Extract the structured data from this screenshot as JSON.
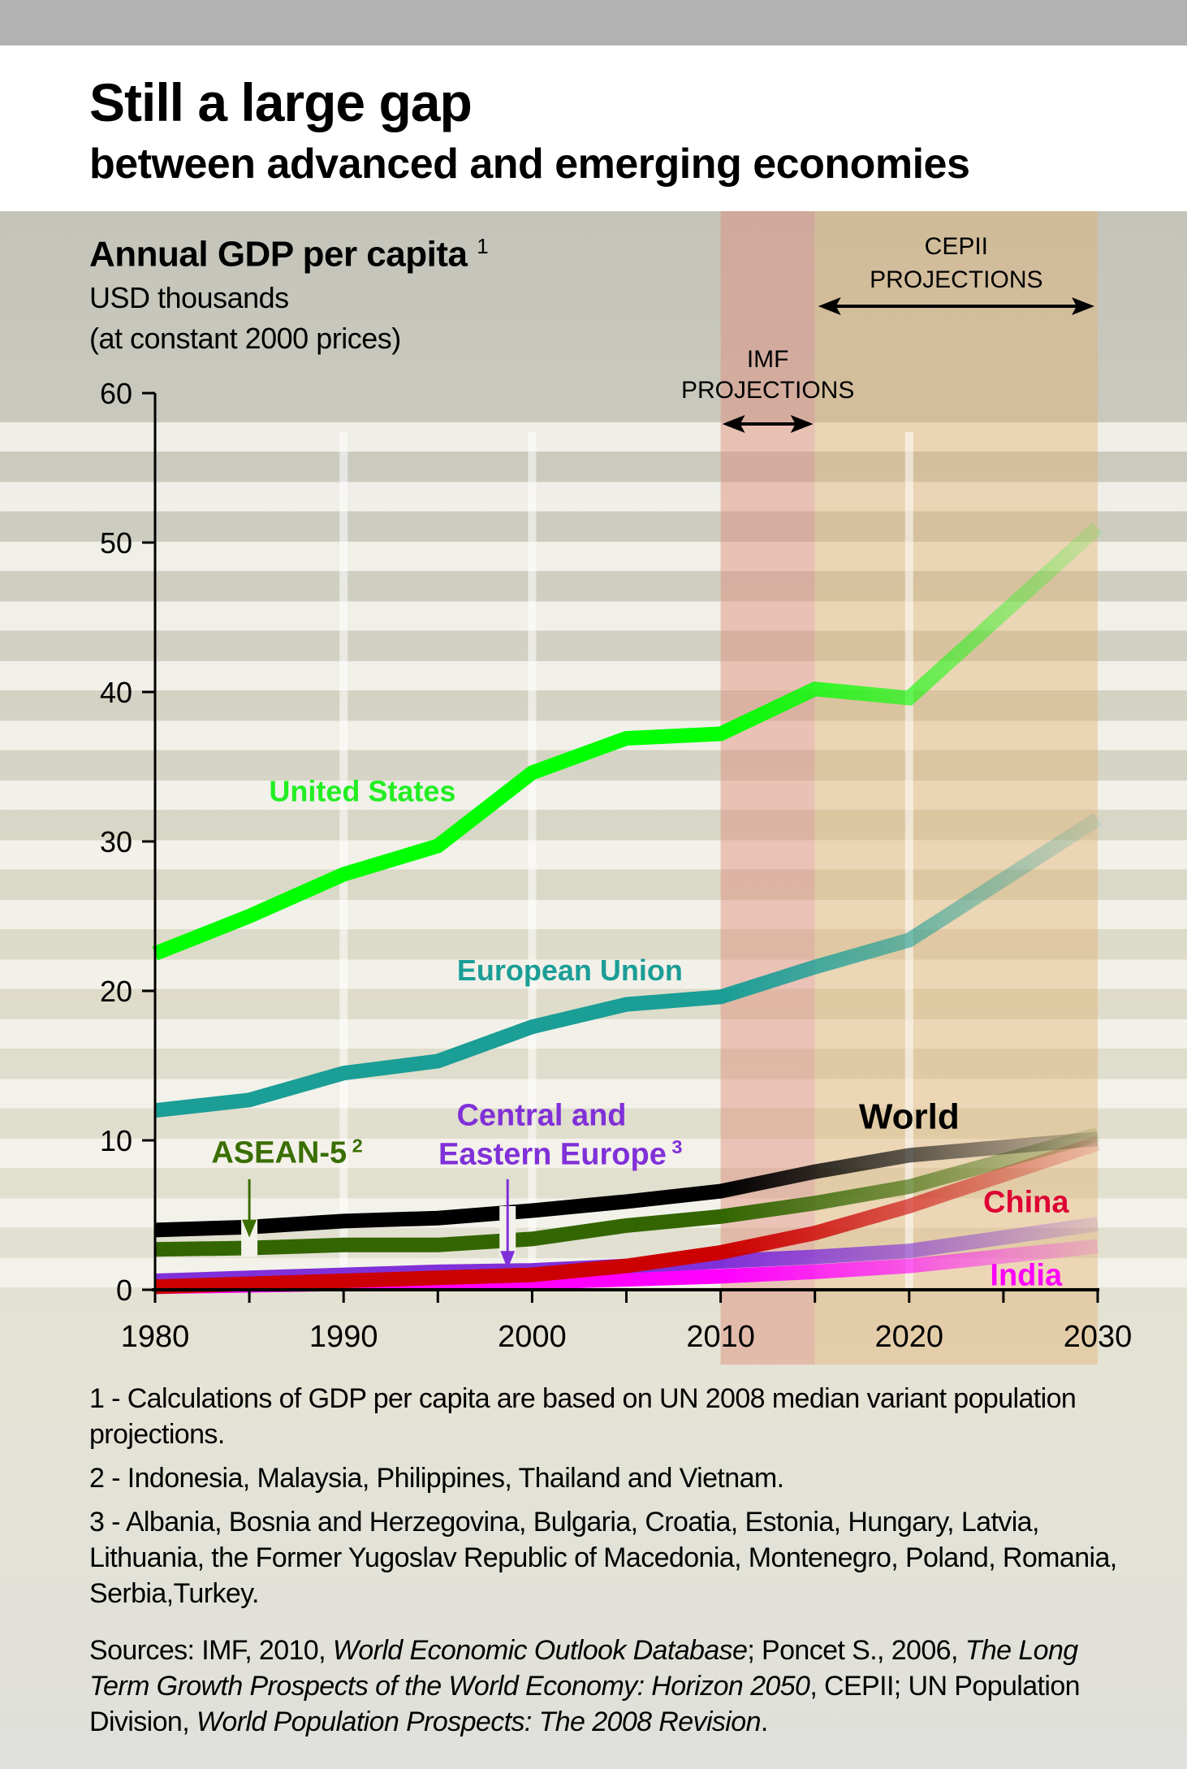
{
  "header": {
    "title": "Still a large gap",
    "subtitle": "between advanced and emerging economies"
  },
  "chart_title": {
    "text": "Annual GDP per capita",
    "footnote_ref": "1",
    "unit_line1": "USD thousands",
    "unit_line2": "(at constant 2000 prices)"
  },
  "bands": {
    "imf": {
      "label1": "IMF",
      "label2": "PROJECTIONS",
      "from": 2010,
      "to": 2015,
      "color": "#e08a78"
    },
    "cepii": {
      "label1": "CEPII",
      "label2": "PROJECTIONS",
      "from": 2015,
      "to": 2030,
      "color": "#e2b06e"
    }
  },
  "chart_data": {
    "type": "line",
    "title": "Annual GDP per capita",
    "ylabel": "USD thousands (at constant 2000 prices)",
    "xlabel": "",
    "xlim": [
      1980,
      2030
    ],
    "ylim": [
      0,
      60
    ],
    "x_ticks": [
      1980,
      1990,
      2000,
      2010,
      2020,
      2030
    ],
    "y_ticks": [
      0,
      10,
      20,
      30,
      40,
      50,
      60
    ],
    "grid": "horizontal stripes",
    "x": [
      1980,
      1985,
      1990,
      1995,
      2000,
      2005,
      2010,
      2015,
      2020,
      2030
    ],
    "series": [
      {
        "name": "United States",
        "color": "#00ff00",
        "label_pos": [
          1988.5,
          33
        ],
        "values": [
          22.5,
          25.0,
          27.8,
          29.7,
          34.6,
          36.9,
          37.2,
          40.2,
          39.6,
          51.0
        ]
      },
      {
        "name": "European Union",
        "color": "#1a9e96",
        "label_pos": [
          2001,
          21.2
        ],
        "values": [
          12.0,
          12.7,
          14.5,
          15.3,
          17.6,
          19.1,
          19.6,
          21.6,
          23.4,
          31.5
        ]
      },
      {
        "name": "World",
        "color": "#000000",
        "label_pos": [
          2020,
          11.5
        ],
        "values": [
          4.0,
          4.2,
          4.6,
          4.8,
          5.3,
          5.9,
          6.6,
          7.9,
          9.0,
          10.1
        ]
      },
      {
        "name": "ASEAN-5",
        "footnote_ref": "2",
        "color": "#336600",
        "label_pos": [
          1984.5,
          8.6
        ],
        "values": [
          2.7,
          2.8,
          3.0,
          3.0,
          3.4,
          4.3,
          4.9,
          5.8,
          6.9,
          10.4
        ]
      },
      {
        "name": "China",
        "color": "#cc0000",
        "label_pos": [
          2026,
          5.3
        ],
        "values": [
          0.2,
          0.4,
          0.6,
          0.8,
          1.0,
          1.6,
          2.5,
          3.8,
          5.6,
          9.8
        ]
      },
      {
        "name": "Central and Eastern Europe",
        "footnote_ref": "3",
        "color": "#8030d8",
        "label_pos": [
          2000.5,
          9.1
        ],
        "values": [
          0.6,
          0.8,
          1.0,
          1.2,
          1.3,
          1.6,
          1.9,
          2.2,
          2.6,
          4.4
        ]
      },
      {
        "name": "India",
        "color": "#ff00ff",
        "label_pos": [
          2026,
          0.4
        ],
        "values": [
          0.2,
          0.3,
          0.4,
          0.5,
          0.5,
          0.7,
          0.9,
          1.2,
          1.6,
          2.9
        ]
      }
    ],
    "annotations": [
      {
        "text": "IMF PROJECTIONS",
        "range": [
          2010,
          2015
        ]
      },
      {
        "text": "CEPII PROJECTIONS",
        "range": [
          2015,
          2030
        ]
      }
    ]
  },
  "labels": {
    "united_states": "United States",
    "european_union": "European Union",
    "world": "World",
    "asean": "ASEAN-5",
    "asean_ref": "2",
    "cee_line1": "Central and",
    "cee_line2": "Eastern Europe",
    "cee_ref": "3",
    "china": "China",
    "india": "India"
  },
  "notes": {
    "n1": "1 - Calculations of GDP per capita are based on UN 2008 median variant population projections.",
    "n2": "2 - Indonesia, Malaysia, Philippines, Thailand and Vietnam.",
    "n3": "3 - Albania, Bosnia and Herzegovina, Bulgaria, Croatia, Estonia, Hungary, Latvia, Lithuania, the Former Yugoslav Republic of Macedonia, Montenegro, Poland, Romania, Serbia,Turkey.",
    "sources_prefix": "Sources: IMF, 2010, ",
    "sources_weo": "World Economic Outlook Database",
    "sources_mid1": "; Poncet S., 2006, ",
    "sources_ltgp": "The Long Term Growth Prospects of the World Economy: Horizon 2050",
    "sources_mid2": ", CEPII; UN Population Division, ",
    "sources_wpp": "World Population Prospects: The 2008 Revision",
    "sources_end": "."
  }
}
